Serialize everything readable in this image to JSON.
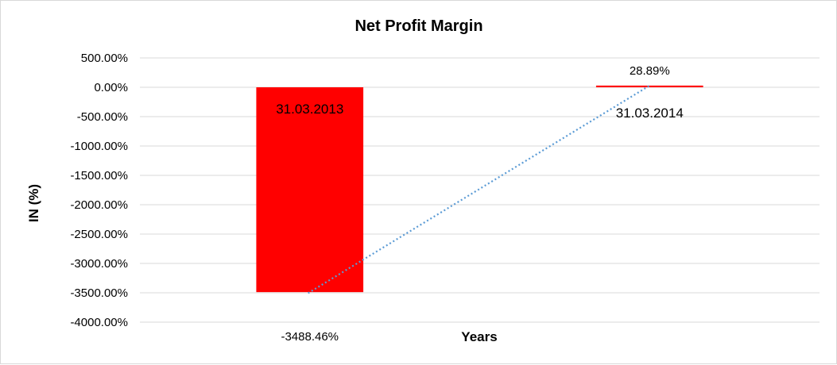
{
  "chart_data": {
    "type": "bar",
    "title": "Net Profit Margin",
    "xlabel": "Years",
    "ylabel": "IN (%)",
    "categories": [
      "31.03.2013",
      "31.03.2014"
    ],
    "values": [
      -3488.46,
      28.89
    ],
    "data_labels": [
      "-3488.46%",
      "28.89%"
    ],
    "ylim": [
      -4000,
      500
    ],
    "yticks": [
      500,
      0,
      -500,
      -1000,
      -1500,
      -2000,
      -2500,
      -3000,
      -3500,
      -4000
    ],
    "ytick_labels": [
      "500.00%",
      "0.00%",
      "-500.00%",
      "-1000.00%",
      "-1500.00%",
      "-2000.00%",
      "-2500.00%",
      "-3000.00%",
      "-3500.00%",
      "-4000.00%"
    ],
    "grid": true,
    "legend": "none",
    "trendline": "linear dotted",
    "colors": {
      "bar": "#ff0000",
      "trendline": "#5b9bd5",
      "grid": "#d9d9d9"
    }
  }
}
